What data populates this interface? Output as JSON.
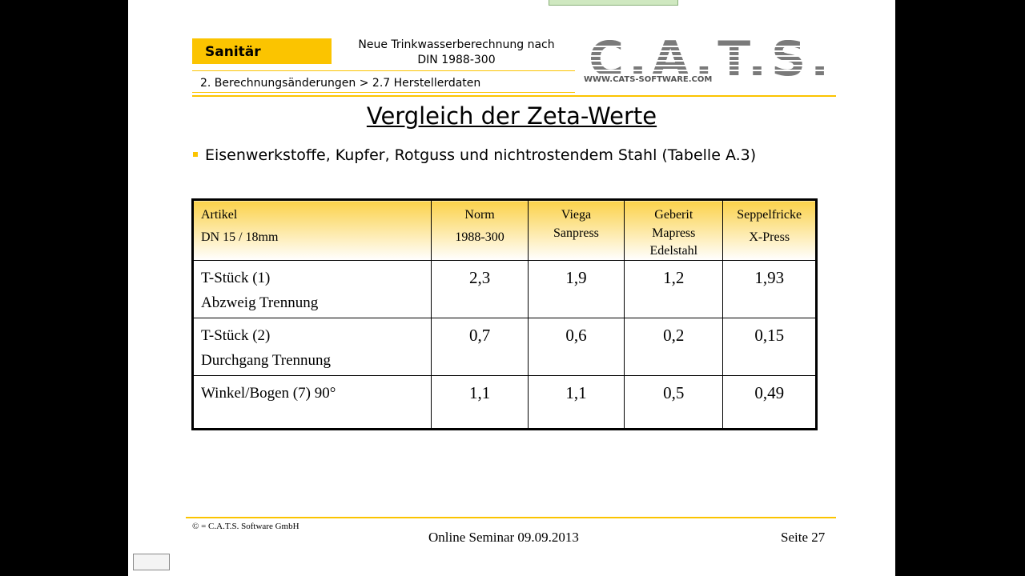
{
  "header": {
    "section": "Sanitär",
    "topic": [
      "Neue Trinkwasserberechnung nach",
      "DIN 1988-300"
    ],
    "breadcrumb": "2. Berechnungsänderungen > 2.7 Herstellerdaten",
    "logo": "C.A.T.S.",
    "logo_url": "WWW.CATS-SOFTWARE.COM"
  },
  "title": "Vergleich der Zeta-Werte",
  "bullet": "Eisenwerkstoffe, Kupfer, Rotguss und nichtrostendem Stahl (Tabelle A.3)",
  "table": {
    "columns": [
      [
        "Artikel",
        "DN 15 / 18mm"
      ],
      [
        "Norm",
        "1988-300"
      ],
      [
        "Viega",
        "Sanpress"
      ],
      [
        "Geberit",
        "Mapress",
        "Edelstahl"
      ],
      [
        "Seppelfricke",
        "X-Press"
      ]
    ],
    "rows": [
      {
        "label": [
          "T-Stück (1)",
          "Abzweig Trennung"
        ],
        "values": [
          "2,3",
          "1,9",
          "1,2",
          "1,93"
        ]
      },
      {
        "label": [
          "T-Stück (2)",
          "Durchgang Trennung"
        ],
        "values": [
          "0,7",
          "0,6",
          "0,2",
          "0,15"
        ]
      },
      {
        "label": [
          "Winkel/Bogen (7)  90°"
        ],
        "values": [
          "1,1",
          "1,1",
          "0,5",
          "0,49"
        ]
      }
    ]
  },
  "footer": {
    "copyright": "© = C.A.T.S. Software GmbH",
    "event": "Online Seminar 09.09.2013",
    "page": "Seite 27"
  }
}
